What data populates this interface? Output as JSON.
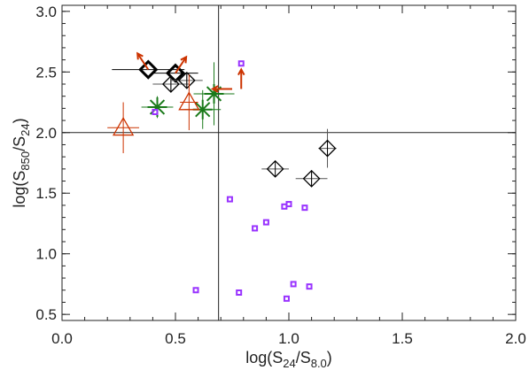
{
  "chart_data": {
    "type": "scatter",
    "xlabel": "log(S24/S8.0)",
    "ylabel": "log(S850/S24)",
    "xlim": [
      0.0,
      2.0
    ],
    "ylim": [
      0.45,
      3.05
    ],
    "x_ticks": [
      0.0,
      0.5,
      1.0,
      1.5,
      2.0
    ],
    "y_ticks": [
      0.5,
      1.0,
      1.5,
      2.0,
      2.5,
      3.0
    ],
    "x_tick_labels": [
      "0.0",
      "0.5",
      "1.0",
      "1.5",
      "2.0"
    ],
    "y_tick_labels": [
      "0.5",
      "1.0",
      "1.5",
      "2.0",
      "2.5",
      "3.0"
    ],
    "reference_lines": {
      "vertical_x": 0.69,
      "horizontal_y": 2.0
    },
    "grid": false,
    "colors": {
      "axes": "#222222",
      "diamond": "#000000",
      "cross": "#1a7a1a",
      "triangle": "#cc3300",
      "square": "#9933ff"
    },
    "series": [
      {
        "marker": "diamond-bold",
        "points": [
          {
            "x": 0.38,
            "y": 2.52,
            "xerr": 0.16,
            "yerr": 0.0
          },
          {
            "x": 0.5,
            "y": 2.49,
            "xerr": 0.1,
            "yerr": 0.0
          }
        ]
      },
      {
        "marker": "diamond",
        "points": [
          {
            "x": 0.48,
            "y": 2.4,
            "xerr": 0.08,
            "yerr": 0.07
          },
          {
            "x": 0.55,
            "y": 2.43,
            "xerr": 0.07,
            "yerr": 0.05
          },
          {
            "x": 0.94,
            "y": 1.7,
            "xerr": 0.06,
            "yerr": 0.0
          },
          {
            "x": 1.1,
            "y": 1.62,
            "xerr": 0.07,
            "yerr": 0.07
          },
          {
            "x": 1.17,
            "y": 1.87,
            "xerr": 0.04,
            "yerr": 0.16
          }
        ]
      },
      {
        "marker": "asterisk",
        "points": [
          {
            "x": 0.42,
            "y": 2.21,
            "xerr": 0.07,
            "yerr": 0.09
          },
          {
            "x": 0.62,
            "y": 2.19,
            "xerr": 0.08,
            "yerr": 0.16
          },
          {
            "x": 0.67,
            "y": 2.32,
            "xerr": 0.09,
            "yerr": 0.26
          }
        ]
      },
      {
        "marker": "triangle",
        "points": [
          {
            "x": 0.27,
            "y": 2.04,
            "xerr": 0.07,
            "yerr": 0.21
          },
          {
            "x": 0.56,
            "y": 2.25,
            "xerr": 0.04,
            "yerr": 0.23
          }
        ]
      },
      {
        "marker": "square",
        "points": [
          {
            "x": 0.41,
            "y": 2.17
          },
          {
            "x": 0.79,
            "y": 2.57
          },
          {
            "x": 0.74,
            "y": 1.45
          },
          {
            "x": 0.85,
            "y": 1.21
          },
          {
            "x": 0.9,
            "y": 1.26
          },
          {
            "x": 0.98,
            "y": 1.39
          },
          {
            "x": 1.0,
            "y": 1.41
          },
          {
            "x": 1.07,
            "y": 1.38
          },
          {
            "x": 0.59,
            "y": 0.7
          },
          {
            "x": 0.78,
            "y": 0.68
          },
          {
            "x": 0.99,
            "y": 0.63
          },
          {
            "x": 1.02,
            "y": 0.75
          },
          {
            "x": 1.09,
            "y": 0.73
          }
        ]
      },
      {
        "marker": "limit-arrow",
        "points": [
          {
            "x": 0.38,
            "y": 2.52,
            "direction": "up-left"
          },
          {
            "x": 0.5,
            "y": 2.49,
            "direction": "up-right"
          },
          {
            "x": 0.75,
            "y": 2.36,
            "direction": "left"
          },
          {
            "x": 0.79,
            "y": 2.36,
            "direction": "up"
          }
        ]
      }
    ]
  }
}
